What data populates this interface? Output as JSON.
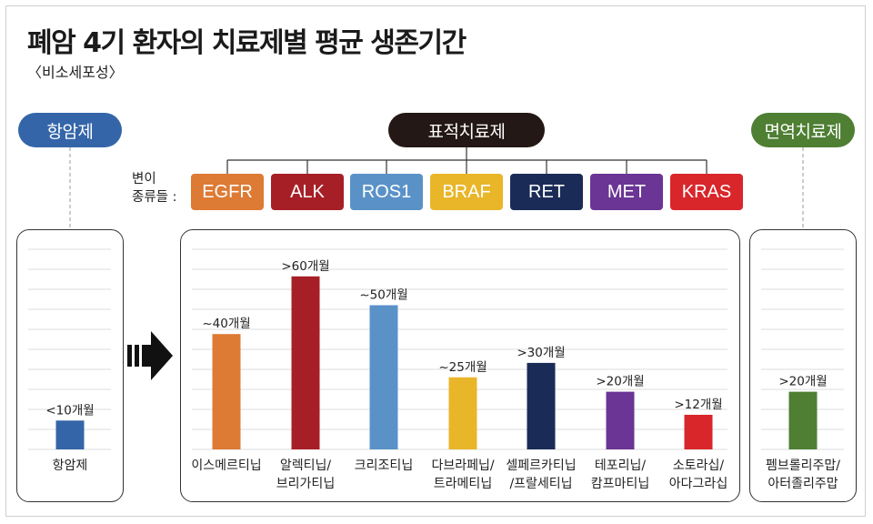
{
  "title": "폐암 4기 환자의 치료제별 평균 생존기간",
  "subtitle": "〈비소세포성〉",
  "categories": {
    "chemo": {
      "label": "항암제",
      "color": "#3465a8"
    },
    "targeted": {
      "label": "표적치료제",
      "color": "#231815"
    },
    "immuno": {
      "label": "면역치료제",
      "color": "#4e7f33"
    }
  },
  "variant_label_line1": "변이",
  "variant_label_line2": "종류들 :",
  "genes": [
    {
      "name": "EGFR",
      "color": "#dd7a34"
    },
    {
      "name": "ALK",
      "color": "#a71f26"
    },
    {
      "name": "ROS1",
      "color": "#5a92c8"
    },
    {
      "name": "BRAF",
      "color": "#e9b629"
    },
    {
      "name": "RET",
      "color": "#1a2b57"
    },
    {
      "name": "MET",
      "color": "#6a3594"
    },
    {
      "name": "KRAS",
      "color": "#d8262a"
    }
  ],
  "chart_data": [
    {
      "type": "bar",
      "panel": "항암제",
      "categories": [
        [
          "항암제"
        ]
      ],
      "values": [
        10
      ],
      "labels": [
        "<10개월"
      ],
      "colors": [
        "#3465a8"
      ]
    },
    {
      "type": "bar",
      "panel": "표적치료제",
      "categories": [
        [
          "이스메르티닙"
        ],
        [
          "알렉티닙/",
          "브리가티닙"
        ],
        [
          "크리조티닙"
        ],
        [
          "다브라페닙/",
          "트라메티닙"
        ],
        [
          "셀페르카티닙",
          "/프랄세티닙"
        ],
        [
          "테포리닙/",
          "캄프마티닙"
        ],
        [
          "소토라십/",
          "아다그라십"
        ]
      ],
      "values": [
        40,
        60,
        50,
        25,
        30,
        20,
        12
      ],
      "labels": [
        "~40개월",
        ">60개월",
        "~50개월",
        "~25개월",
        ">30개월",
        ">20개월",
        ">12개월"
      ],
      "colors": [
        "#dd7a34",
        "#a71f26",
        "#5a92c8",
        "#e9b629",
        "#1a2b57",
        "#6a3594",
        "#d8262a"
      ]
    },
    {
      "type": "bar",
      "panel": "면역치료제",
      "categories": [
        [
          "펨브롤리주맙/",
          "아터졸리주맙"
        ]
      ],
      "values": [
        20
      ],
      "labels": [
        ">20개월"
      ],
      "colors": [
        "#4e7f33"
      ]
    }
  ]
}
